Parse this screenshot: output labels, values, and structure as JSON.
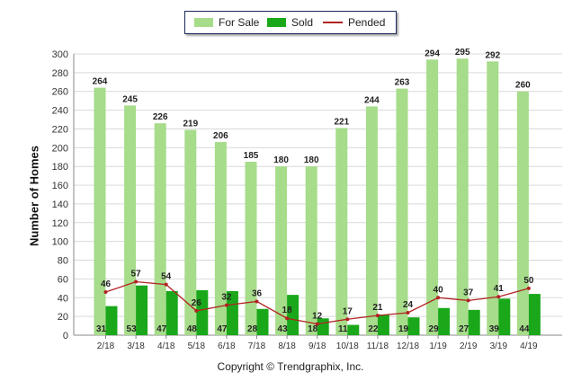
{
  "colors": {
    "for_sale": "#a6dc8a",
    "sold": "#1aa81a",
    "pended": "#b22222",
    "grid": "#d9d9d9"
  },
  "chart_data": {
    "type": "bar",
    "categories": [
      "2/18",
      "3/18",
      "4/18",
      "5/18",
      "6/18",
      "7/18",
      "8/18",
      "9/18",
      "10/18",
      "11/18",
      "12/18",
      "1/19",
      "2/19",
      "3/19",
      "4/19"
    ],
    "series": [
      {
        "name": "For Sale",
        "type": "bar",
        "values": [
          264,
          245,
          226,
          219,
          206,
          185,
          180,
          180,
          221,
          244,
          263,
          294,
          295,
          292,
          260
        ]
      },
      {
        "name": "Sold",
        "type": "bar",
        "values": [
          31,
          53,
          47,
          48,
          47,
          28,
          43,
          18,
          11,
          22,
          19,
          29,
          27,
          39,
          44
        ]
      },
      {
        "name": "Pended",
        "type": "line",
        "values": [
          46,
          57,
          54,
          26,
          32,
          36,
          18,
          12,
          17,
          21,
          24,
          40,
          37,
          41,
          50
        ]
      }
    ],
    "ylabel": "Number of Homes",
    "xlabel": "",
    "ylim": [
      0,
      300
    ],
    "yticks": [
      0,
      20,
      40,
      60,
      80,
      100,
      120,
      140,
      160,
      180,
      200,
      220,
      240,
      260,
      280,
      300
    ],
    "grid": true,
    "legend": "top-center"
  },
  "legend": {
    "for_sale": "For Sale",
    "sold": "Sold",
    "pended": "Pended"
  },
  "footer": "Copyright © Trendgraphix, Inc."
}
